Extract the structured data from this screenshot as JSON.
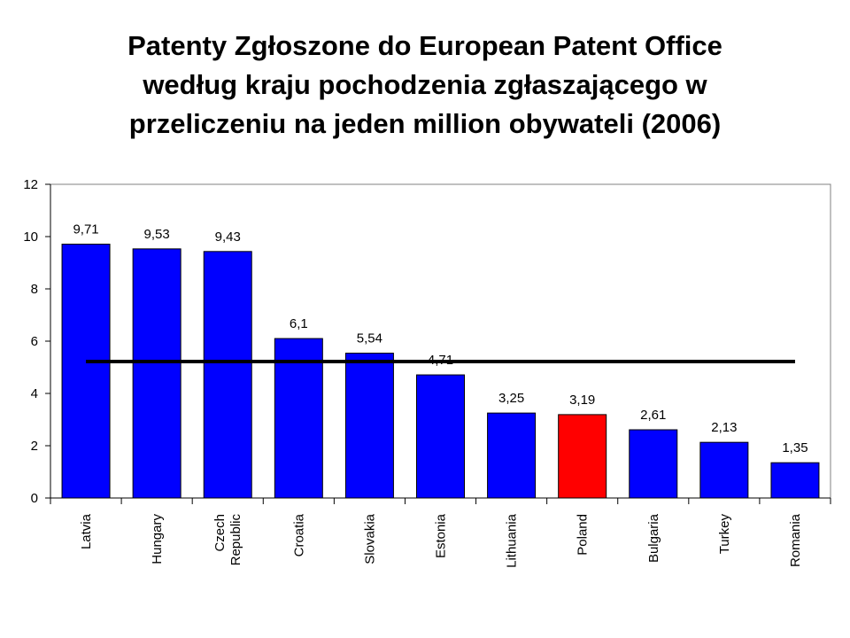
{
  "chart_data": {
    "type": "bar",
    "title": [
      "Patenty Zgłoszone do European Patent Office",
      "według kraju pochodzenia zgłaszającego w",
      "przeliczeniu na jeden million obywateli (2006)"
    ],
    "categories": [
      [
        "Latvia"
      ],
      [
        "Hungary"
      ],
      [
        "Czech",
        "Republic"
      ],
      [
        "Croatia"
      ],
      [
        "Slovakia"
      ],
      [
        "Estonia"
      ],
      [
        "Lithuania"
      ],
      [
        "Poland"
      ],
      [
        "Bulgaria"
      ],
      [
        "Turkey"
      ],
      [
        "Romania"
      ]
    ],
    "values": [
      9.71,
      9.53,
      9.43,
      6.1,
      5.54,
      4.71,
      3.25,
      3.19,
      2.61,
      2.13,
      1.35
    ],
    "data_labels": [
      "9,71",
      "9,53",
      "9,43",
      "6,1",
      "5,54",
      "4,71",
      "3,25",
      "3,19",
      "2,61",
      "2,13",
      "1,35"
    ],
    "bar_colors": [
      "#0000ff",
      "#0000ff",
      "#0000ff",
      "#0000ff",
      "#0000ff",
      "#0000ff",
      "#0000ff",
      "#ff0000",
      "#0000ff",
      "#0000ff",
      "#0000ff"
    ],
    "reference_line": {
      "value": 5.22,
      "color": "#000000"
    },
    "ylim": [
      0,
      12
    ],
    "yticks": [
      0,
      2,
      4,
      6,
      8,
      10,
      12
    ],
    "xlabel": "",
    "ylabel": "",
    "grid": false,
    "legend": "none"
  }
}
